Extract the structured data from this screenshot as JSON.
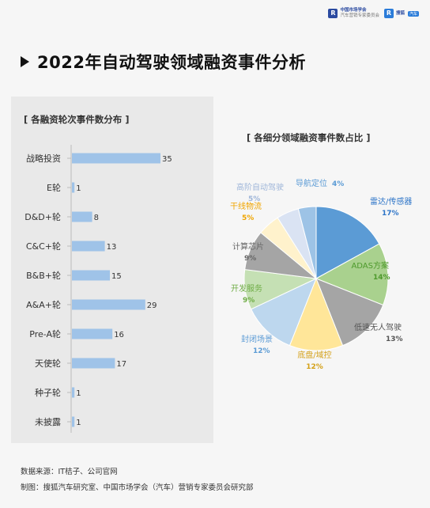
{
  "header": {
    "logo1_text": "中国市场学会",
    "logo1_sub": "汽车营销专家委员会",
    "logo2_text": "搜狐",
    "logo2_badge": "汽车"
  },
  "title": "2022年自动驾驶领域融资事件分析",
  "footer": {
    "source": "数据来源：IT桔子、公司官网",
    "producer": "制图：搜狐汽车研究室、中国市场学会（汽车）营销专家委员会研究部"
  },
  "chart_data": [
    {
      "type": "bar",
      "orientation": "horizontal",
      "title": "[ 各融资轮次事件数分布 ]",
      "categories": [
        "战略投资",
        "E轮",
        "D&D+轮",
        "C&C+轮",
        "B&B+轮",
        "A&A+轮",
        "Pre-A轮",
        "天使轮",
        "种子轮",
        "未披露"
      ],
      "values": [
        35,
        1,
        8,
        13,
        15,
        29,
        16,
        17,
        1,
        1
      ],
      "colors": {
        "bar": "#9fc3e8",
        "axis": "#bbbbbb"
      }
    },
    {
      "type": "pie",
      "title": "[ 各细分领域融资事件数占比 ]",
      "slices": [
        {
          "label": "雷达/传感器",
          "value": 17,
          "percent": "17%",
          "color": "#5b9bd5",
          "label_color": "#2e75c8"
        },
        {
          "label": "ADAS方案",
          "value": 14,
          "percent": "14%",
          "color": "#a9d18e",
          "label_color": "#4e9a2c"
        },
        {
          "label": "低速无人驾驶",
          "value": 13,
          "percent": "13%",
          "color": "#a5a5a5",
          "label_color": "#555555"
        },
        {
          "label": "底盘/域控",
          "value": 12,
          "percent": "12%",
          "color": "#ffe699",
          "label_color": "#d4a017"
        },
        {
          "label": "封闭场景",
          "value": 12,
          "percent": "12%",
          "color": "#bdd7ee",
          "label_color": "#5b9bd5"
        },
        {
          "label": "开发服务",
          "value": 9,
          "percent": "9%",
          "color": "#c5e0b4",
          "label_color": "#70ad47"
        },
        {
          "label": "计算芯片",
          "value": 9,
          "percent": "9%",
          "color": "#a5a5a5",
          "label_color": "#666666"
        },
        {
          "label": "干线物流",
          "value": 5,
          "percent": "5%",
          "color": "#fff2cc",
          "label_color": "#f0a500"
        },
        {
          "label": "高阶自动驾驶",
          "value": 5,
          "percent": "5%",
          "color": "#dae3f3",
          "label_color": "#9fb6d9"
        },
        {
          "label": "导航定位",
          "value": 4,
          "percent": "4%",
          "color": "#9dc3e6",
          "label_color": "#5b9bd5"
        }
      ]
    }
  ]
}
